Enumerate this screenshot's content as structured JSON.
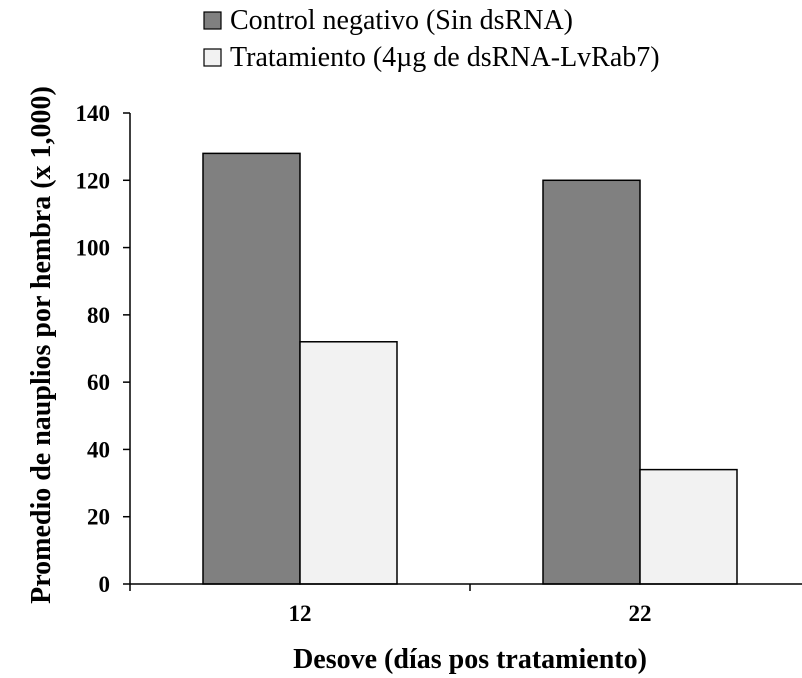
{
  "chart_data": {
    "type": "bar",
    "title": "",
    "xlabel": "Desove (días pos tratamiento)",
    "ylabel": "Promedio de nauplios por hembra (x 1,000)",
    "categories": [
      "12",
      "22"
    ],
    "series": [
      {
        "name": "Control negativo (Sin dsRNA)",
        "values": [
          128,
          120
        ],
        "color": "#808080"
      },
      {
        "name": "Tratamiento (4µg de dsRNA-LvRab7)",
        "values": [
          72,
          34
        ],
        "color": "#f2f2f2"
      }
    ],
    "ylim": [
      0,
      140
    ],
    "yticks": [
      0,
      20,
      40,
      60,
      80,
      100,
      120,
      140
    ],
    "grid": false,
    "legend_position": "top"
  }
}
